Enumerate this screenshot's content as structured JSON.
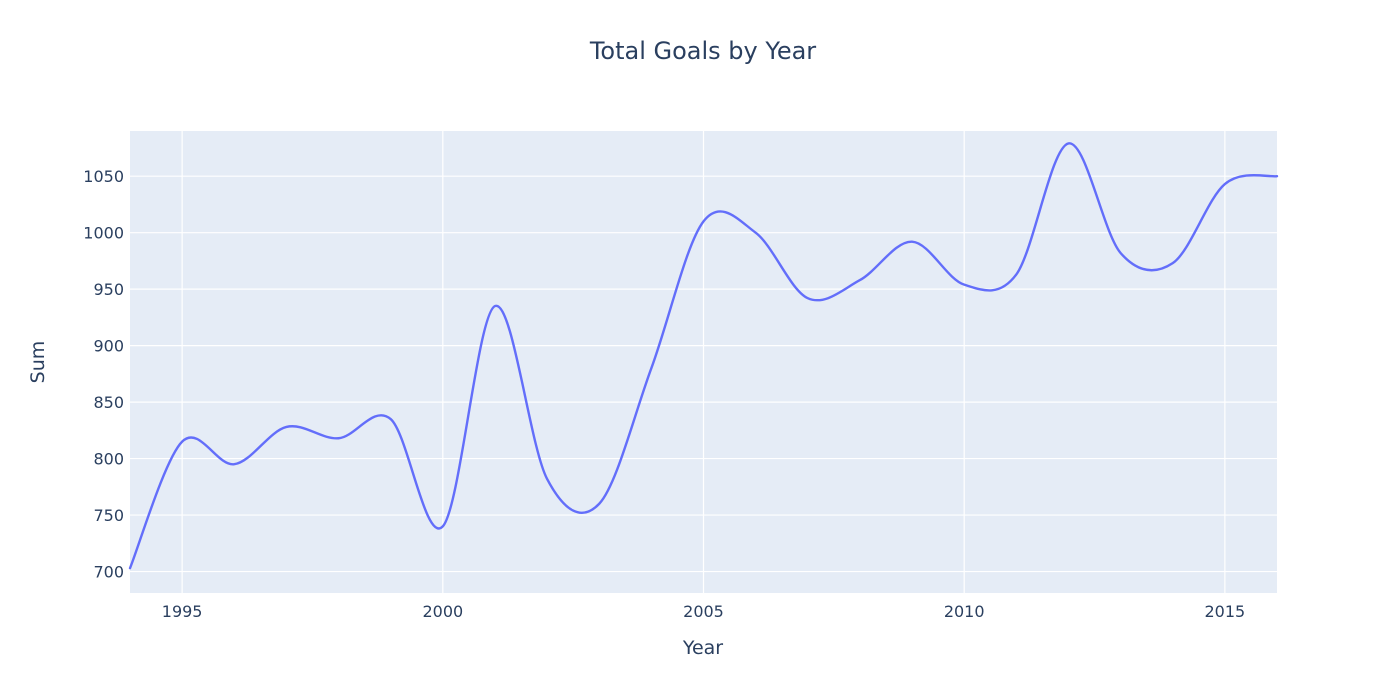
{
  "chart_data": {
    "type": "line",
    "title": "Total Goals by Year",
    "xlabel": "Year",
    "ylabel": "Sum",
    "xlim": [
      1994,
      2016
    ],
    "ylim": [
      681,
      1090
    ],
    "x_ticks": [
      1995,
      2000,
      2005,
      2010,
      2015
    ],
    "y_ticks": [
      700,
      750,
      800,
      850,
      900,
      950,
      1000,
      1050
    ],
    "grid": true,
    "legend": "none",
    "line_shape": "spline",
    "colors": {
      "line": "#636efa",
      "plot_background": "#e5ecf6",
      "grid": "#ffffff",
      "text": "#2a3f5f"
    },
    "series": [
      {
        "x": [
          1994,
          1995,
          1996,
          1997,
          1998,
          1999,
          2000,
          2001,
          2002,
          2003,
          2004,
          2005,
          2006,
          2007,
          2008,
          2009,
          2010,
          2011,
          2012,
          2013,
          2014,
          2015,
          2016
        ],
        "values": [
          703,
          815,
          795,
          828,
          818,
          835,
          740,
          935,
          782,
          760,
          880,
          1010,
          1000,
          942,
          958,
          992,
          954,
          963,
          1079,
          982,
          973,
          1043,
          1050
        ]
      }
    ]
  }
}
